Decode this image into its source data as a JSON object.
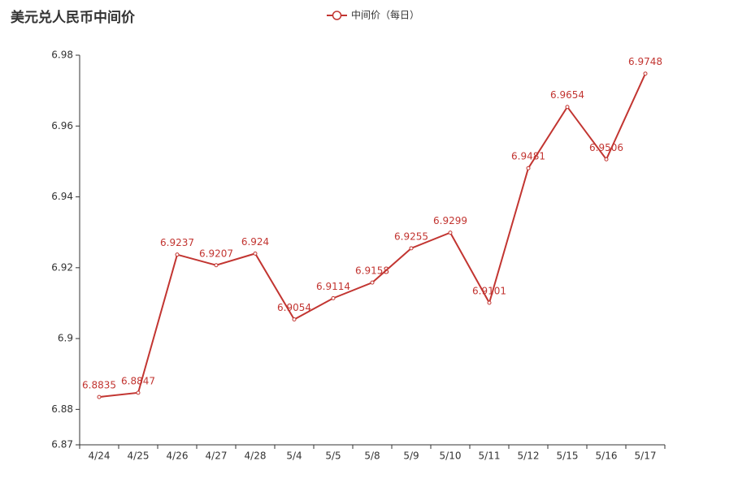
{
  "chart_data": {
    "type": "line",
    "title": "美元兑人民币中间价",
    "categories": [
      "4/24",
      "4/25",
      "4/26",
      "4/27",
      "4/28",
      "5/4",
      "5/5",
      "5/8",
      "5/9",
      "5/10",
      "5/11",
      "5/12",
      "5/15",
      "5/16",
      "5/17"
    ],
    "series": [
      {
        "name": "中间价（每日）",
        "color": "#c23531",
        "values": [
          6.8835,
          6.8847,
          6.9237,
          6.9207,
          6.924,
          6.9054,
          6.9114,
          6.9158,
          6.9255,
          6.9299,
          6.9101,
          6.9481,
          6.9654,
          6.9506,
          6.9748
        ]
      }
    ],
    "ylim": [
      6.87,
      6.98
    ],
    "yticks": [
      6.87,
      6.88,
      6.9,
      6.92,
      6.94,
      6.96,
      6.98
    ],
    "grid": false,
    "legend": "top"
  }
}
